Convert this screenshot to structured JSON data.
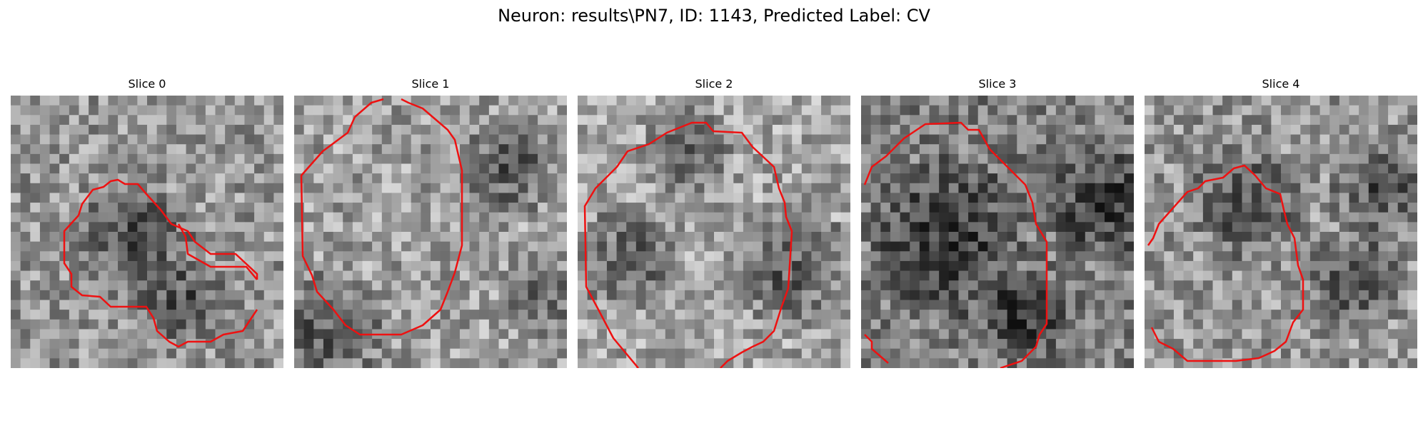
{
  "title": "Neuron: results\\PN7, ID: 1143, Predicted Label: CV",
  "contour_color": "#ee1111",
  "panels": [
    {
      "label": "Slice 0"
    },
    {
      "label": "Slice 1"
    },
    {
      "label": "Slice 2"
    },
    {
      "label": "Slice 3"
    },
    {
      "label": "Slice 4"
    }
  ]
}
